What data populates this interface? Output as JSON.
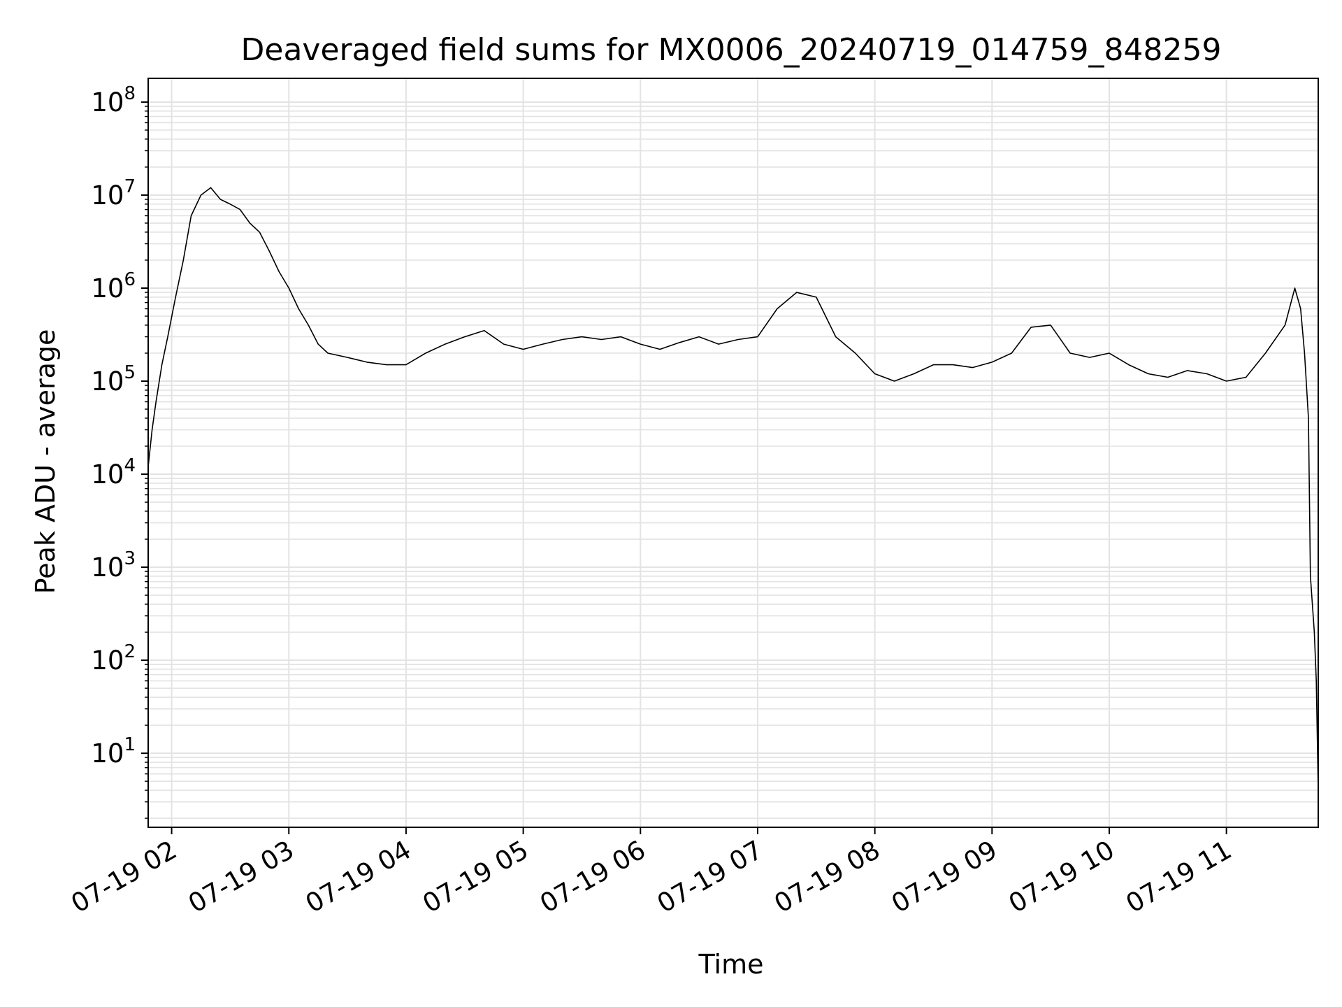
{
  "chart_data": {
    "type": "line",
    "title": "Deaveraged field sums for MX0006_20240719_014759_848259",
    "xlabel": "Time",
    "ylabel": "Peak ADU - average",
    "y_scale": "log",
    "ylim": [
      1.6,
      180000000
    ],
    "xlim": [
      "2024-07-19 01:47:59",
      "2024-07-19 11:47:00"
    ],
    "grid": true,
    "line_color": "#000000",
    "grid_color": "#e3e3e3",
    "x_ticks": [
      {
        "value": "2024-07-19 02:00",
        "label": "07-19 02"
      },
      {
        "value": "2024-07-19 03:00",
        "label": "07-19 03"
      },
      {
        "value": "2024-07-19 04:00",
        "label": "07-19 04"
      },
      {
        "value": "2024-07-19 05:00",
        "label": "07-19 05"
      },
      {
        "value": "2024-07-19 06:00",
        "label": "07-19 06"
      },
      {
        "value": "2024-07-19 07:00",
        "label": "07-19 07"
      },
      {
        "value": "2024-07-19 08:00",
        "label": "07-19 08"
      },
      {
        "value": "2024-07-19 09:00",
        "label": "07-19 09"
      },
      {
        "value": "2024-07-19 10:00",
        "label": "07-19 10"
      },
      {
        "value": "2024-07-19 11:00",
        "label": "07-19 11"
      }
    ],
    "y_ticks": [
      {
        "value": 10,
        "base": "10",
        "exp": "1"
      },
      {
        "value": 100,
        "base": "10",
        "exp": "2"
      },
      {
        "value": 1000,
        "base": "10",
        "exp": "3"
      },
      {
        "value": 10000,
        "base": "10",
        "exp": "4"
      },
      {
        "value": 100000,
        "base": "10",
        "exp": "5"
      },
      {
        "value": 1000000,
        "base": "10",
        "exp": "6"
      },
      {
        "value": 10000000,
        "base": "10",
        "exp": "7"
      },
      {
        "value": 100000000,
        "base": "10",
        "exp": "8"
      }
    ],
    "series": [
      {
        "x": [
          "2024-07-19 01:48",
          "2024-07-19 01:50",
          "2024-07-19 01:52",
          "2024-07-19 01:55",
          "2024-07-19 01:58",
          "2024-07-19 02:02",
          "2024-07-19 02:06",
          "2024-07-19 02:10",
          "2024-07-19 02:15",
          "2024-07-19 02:20",
          "2024-07-19 02:25",
          "2024-07-19 02:30",
          "2024-07-19 02:35",
          "2024-07-19 02:40",
          "2024-07-19 02:45",
          "2024-07-19 02:50",
          "2024-07-19 02:55",
          "2024-07-19 03:00",
          "2024-07-19 03:05",
          "2024-07-19 03:10",
          "2024-07-19 03:15",
          "2024-07-19 03:20",
          "2024-07-19 03:30",
          "2024-07-19 03:40",
          "2024-07-19 03:50",
          "2024-07-19 04:00",
          "2024-07-19 04:10",
          "2024-07-19 04:20",
          "2024-07-19 04:30",
          "2024-07-19 04:40",
          "2024-07-19 04:50",
          "2024-07-19 05:00",
          "2024-07-19 05:10",
          "2024-07-19 05:20",
          "2024-07-19 05:30",
          "2024-07-19 05:40",
          "2024-07-19 05:50",
          "2024-07-19 06:00",
          "2024-07-19 06:10",
          "2024-07-19 06:20",
          "2024-07-19 06:30",
          "2024-07-19 06:40",
          "2024-07-19 06:50",
          "2024-07-19 07:00",
          "2024-07-19 07:10",
          "2024-07-19 07:20",
          "2024-07-19 07:30",
          "2024-07-19 07:40",
          "2024-07-19 07:50",
          "2024-07-19 08:00",
          "2024-07-19 08:10",
          "2024-07-19 08:20",
          "2024-07-19 08:30",
          "2024-07-19 08:40",
          "2024-07-19 08:50",
          "2024-07-19 09:00",
          "2024-07-19 09:10",
          "2024-07-19 09:20",
          "2024-07-19 09:30",
          "2024-07-19 09:40",
          "2024-07-19 09:50",
          "2024-07-19 10:00",
          "2024-07-19 10:10",
          "2024-07-19 10:20",
          "2024-07-19 10:30",
          "2024-07-19 10:40",
          "2024-07-19 10:50",
          "2024-07-19 11:00",
          "2024-07-19 11:10",
          "2024-07-19 11:20",
          "2024-07-19 11:30",
          "2024-07-19 11:35",
          "2024-07-19 11:38",
          "2024-07-19 11:40",
          "2024-07-19 11:42",
          "2024-07-19 11:43",
          "2024-07-19 11:44",
          "2024-07-19 11:45",
          "2024-07-19 11:46",
          "2024-07-19 11:47"
        ],
        "y": [
          12000,
          30000,
          60000,
          150000,
          300000,
          800000,
          2000000,
          6000000,
          10000000,
          12000000,
          9000000,
          8000000,
          7000000,
          5000000,
          4000000,
          2500000,
          1500000,
          1000000,
          600000,
          400000,
          250000,
          200000,
          180000,
          160000,
          150000,
          150000,
          200000,
          250000,
          300000,
          350000,
          250000,
          220000,
          250000,
          280000,
          300000,
          280000,
          300000,
          250000,
          220000,
          260000,
          300000,
          250000,
          280000,
          300000,
          600000,
          900000,
          800000,
          300000,
          200000,
          120000,
          100000,
          120000,
          150000,
          150000,
          140000,
          160000,
          200000,
          380000,
          400000,
          200000,
          180000,
          200000,
          150000,
          120000,
          110000,
          130000,
          120000,
          100000,
          110000,
          200000,
          400000,
          1000000,
          600000,
          200000,
          40000,
          800,
          400,
          200,
          60,
          4
        ]
      }
    ]
  }
}
